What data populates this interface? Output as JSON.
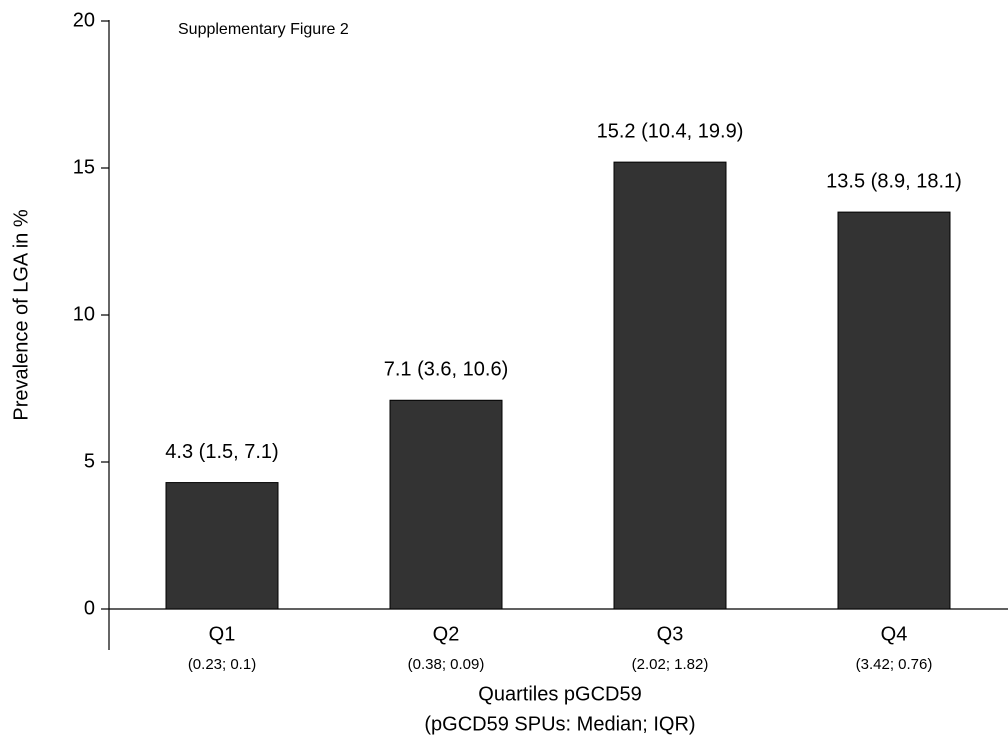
{
  "chart_data": {
    "type": "bar",
    "annotation": "Supplementary Figure 2",
    "ylabel": "Prevalence of LGA in %",
    "xlabel": [
      "Quartiles pGCD59",
      "(pGCD59 SPUs: Median; IQR)"
    ],
    "categories": [
      "Q1",
      "Q2",
      "Q3",
      "Q4"
    ],
    "category_sublabels": [
      "(0.23; 0.1)",
      "(0.38; 0.09)",
      "(2.02; 1.82)",
      "(3.42; 0.76)"
    ],
    "values": [
      4.3,
      7.1,
      15.2,
      13.5
    ],
    "value_labels": [
      "4.3 (1.5, 7.1)",
      "7.1 (3.6, 10.6)",
      "15.2 (10.4, 19.9)",
      "13.5 (8.9, 18.1)"
    ],
    "color": "#333333",
    "ylim": [
      0,
      20
    ],
    "yticks": [
      0,
      5,
      10,
      15,
      20
    ],
    "grid": false
  }
}
